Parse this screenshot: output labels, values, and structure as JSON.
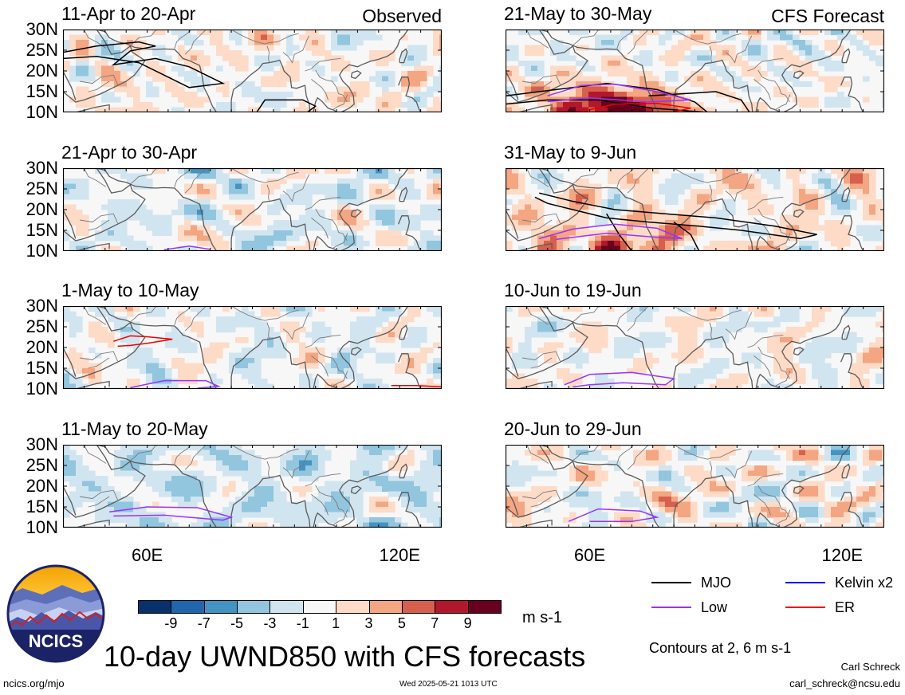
{
  "panels": [
    {
      "title": "11-Apr to 20-Apr",
      "tag": "Observed",
      "left": true,
      "seed": 1,
      "bias": 0.05,
      "mjo": true,
      "low": false,
      "er": false,
      "hot": false
    },
    {
      "title": "21-Apr to 30-Apr",
      "tag": "",
      "left": true,
      "seed": 2,
      "bias": -0.15,
      "mjo": false,
      "low": true,
      "er": false,
      "hot": false
    },
    {
      "title": "1-May to 10-May",
      "tag": "",
      "left": true,
      "seed": 3,
      "bias": -0.1,
      "mjo": false,
      "low": true,
      "er": true,
      "hot": false
    },
    {
      "title": "11-May to 20-May",
      "tag": "",
      "left": true,
      "seed": 4,
      "bias": -0.35,
      "mjo": false,
      "low": true,
      "er": false,
      "hot": false
    },
    {
      "title": "21-May to 30-May",
      "tag": "CFS Forecast",
      "left": false,
      "seed": 5,
      "bias": -0.05,
      "mjo": true,
      "low": true,
      "er": true,
      "hot": true
    },
    {
      "title": "31-May to 9-Jun",
      "tag": "",
      "left": false,
      "seed": 6,
      "bias": 0.15,
      "mjo": true,
      "low": true,
      "er": false,
      "hot": true
    },
    {
      "title": "10-Jun to 19-Jun",
      "tag": "",
      "left": false,
      "seed": 7,
      "bias": 0.0,
      "mjo": false,
      "low": true,
      "er": false,
      "hot": false
    },
    {
      "title": "20-Jun to 29-Jun",
      "tag": "",
      "left": false,
      "seed": 8,
      "bias": 0.05,
      "mjo": false,
      "low": true,
      "er": false,
      "hot": false
    }
  ],
  "lat_labels": [
    "30N",
    "25N",
    "20N",
    "15N",
    "10N"
  ],
  "lon_labels": [
    "60E",
    "120E"
  ],
  "colorbar": {
    "colors": [
      "#08306b",
      "#2166ac",
      "#4393c3",
      "#92c5de",
      "#d1e5f0",
      "#f7f7f7",
      "#fddbc7",
      "#f4a582",
      "#d6604d",
      "#b2182b",
      "#67001f"
    ],
    "labels": [
      "-9",
      "-7",
      "-5",
      "-3",
      "-1",
      "1",
      "3",
      "5",
      "7",
      "9"
    ],
    "units": "m s-1"
  },
  "legend": [
    {
      "label": "MJO",
      "color": "#000000"
    },
    {
      "label": "Kelvin x2",
      "color": "#0000ee"
    },
    {
      "label": "Low",
      "color": "#9933ff"
    },
    {
      "label": "ER",
      "color": "#ee0000"
    }
  ],
  "contours_note": "Contours at 2, 6 m s-1",
  "main_title": "10-day UWND850 with CFS forecasts",
  "logo_text": "NCICS",
  "site": "ncics.org/mjo",
  "timestamp": "Wed 2025-05-21 1013 UTC",
  "author": "Carl Schreck",
  "email": "carl_schreck@ncsu.edu"
}
